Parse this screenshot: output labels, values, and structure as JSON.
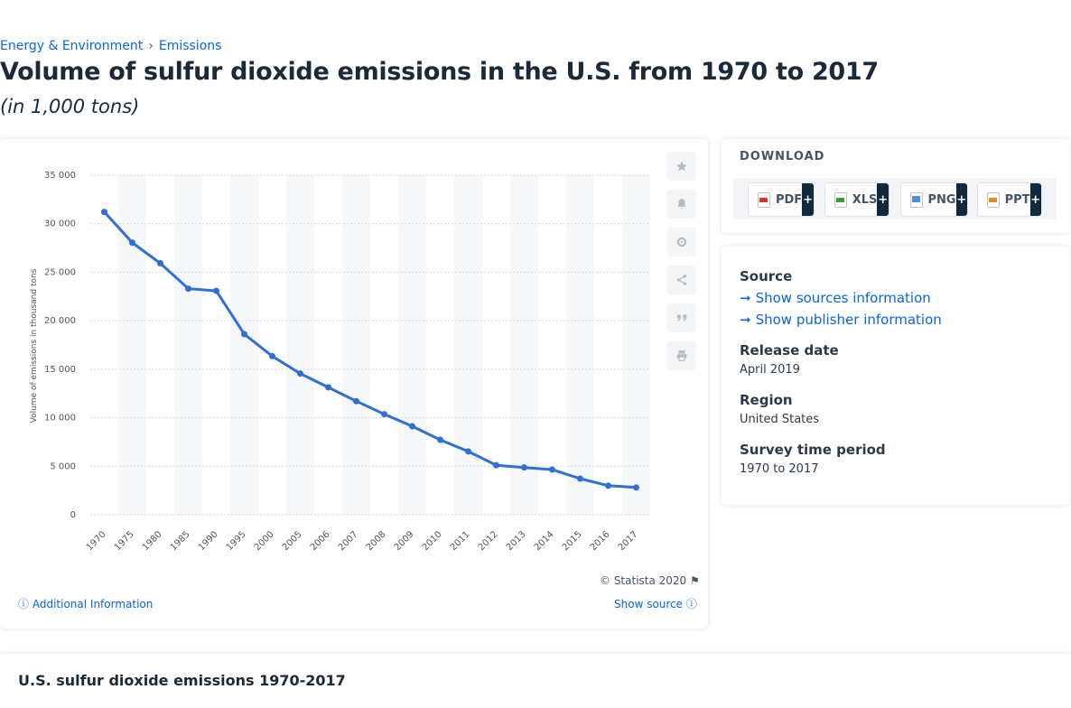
{
  "breadcrumb": {
    "item1": "Energy & Environment",
    "item2": "Emissions"
  },
  "title": "Volume of sulfur dioxide emissions in the U.S. from 1970 to 2017",
  "subtitle": "(in 1,000 tons)",
  "chart_data": {
    "type": "line",
    "ylabel": "Volume of emissions in thousand tons",
    "ylim": [
      0,
      35000
    ],
    "yticks": [
      0,
      5000,
      10000,
      15000,
      20000,
      25000,
      30000,
      35000
    ],
    "ytick_labels": [
      "0",
      "5 000",
      "10 000",
      "15 000",
      "20 000",
      "25 000",
      "30 000",
      "35 000"
    ],
    "categories": [
      "1970",
      "1975",
      "1980",
      "1985",
      "1990",
      "1995",
      "2000",
      "2005",
      "2006",
      "2007",
      "2008",
      "2009",
      "2010",
      "2011",
      "2012",
      "2013",
      "2014",
      "2015",
      "2016",
      "2017"
    ],
    "series": [
      {
        "values": [
          31218,
          28044,
          25926,
          23307,
          23077,
          18619,
          16347,
          14552,
          13137,
          11706,
          10368,
          9123,
          7728,
          6527,
          5110,
          4871,
          4657,
          3726,
          2993,
          2808
        ]
      }
    ],
    "grid": "horizontal",
    "line_color": "#2f6fd6"
  },
  "tools": {
    "star": "star-icon",
    "bell": "bell-icon",
    "settings": "gear-icon",
    "share": "share-icon",
    "cite": "quote-icon",
    "print": "print-icon"
  },
  "copyright": "© Statista 2020",
  "footer": {
    "additional": "Additional Information",
    "show_source": "Show source"
  },
  "download": {
    "title": "DOWNLOAD",
    "buttons": [
      "PDF",
      "XLS",
      "PNG",
      "PPT"
    ],
    "plus": "+"
  },
  "info": {
    "source_label": "Source",
    "sources_link": "Show sources information",
    "publisher_link": "Show publisher information",
    "release_label": "Release date",
    "release_value": "April 2019",
    "region_label": "Region",
    "region_value": "United States",
    "survey_label": "Survey time period",
    "survey_value": "1970 to 2017"
  },
  "bottom_title": "U.S. sulfur dioxide emissions 1970-2017"
}
